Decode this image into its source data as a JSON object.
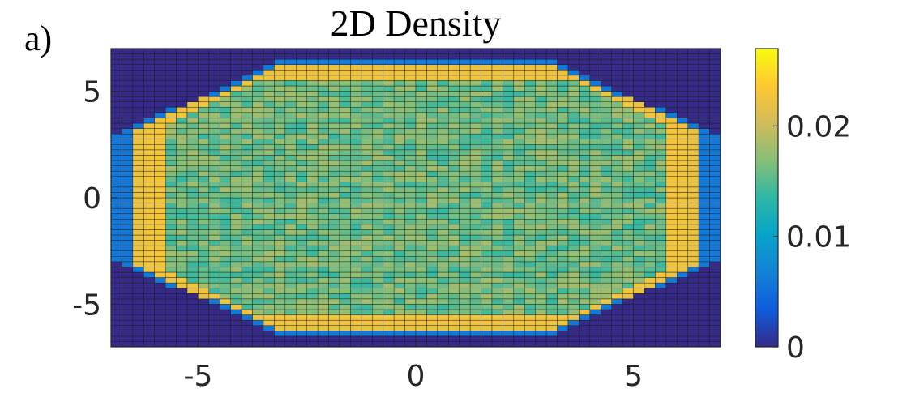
{
  "panel_label": "a)",
  "chart_data": {
    "type": "heatmap",
    "title": "2D Density",
    "xlabel": "",
    "ylabel": "",
    "xlim": [
      -7,
      7
    ],
    "ylim": [
      -7,
      7
    ],
    "xticks": [
      "-5",
      "0",
      "5"
    ],
    "xtick_values": [
      -5,
      0,
      5
    ],
    "yticks": [
      "5",
      "0",
      "-5"
    ],
    "ytick_values": [
      5,
      0,
      -5
    ],
    "grid_cells": [
      56,
      56
    ],
    "colormap": "parula",
    "colormap_stops": [
      "#352a87",
      "#0f5cdd",
      "#1481d6",
      "#06a4ca",
      "#2eb7a4",
      "#87bf77",
      "#d1bb59",
      "#fec832",
      "#f9fb0e"
    ],
    "clim": [
      0,
      0.027
    ],
    "colorbar": {
      "ticks": [
        "0",
        "0.01",
        "0.02"
      ],
      "tick_values": [
        0,
        0.01,
        0.02
      ]
    },
    "region": {
      "shape": "lozenge",
      "x_half_width": 6.9,
      "y_half_height": 6.5,
      "x_flat_edge_half_height": 3.0,
      "y_flat_edge_half_width": 3.0,
      "interior_value": 0.016,
      "rim_value": 0.023,
      "outside_value": 0.0
    }
  }
}
